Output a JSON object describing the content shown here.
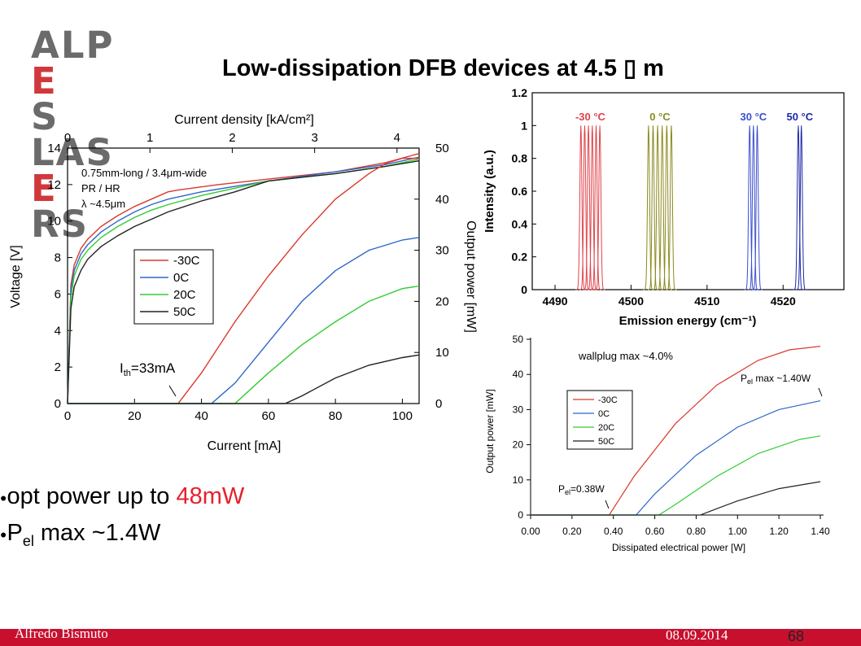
{
  "logo": {
    "line1a": "ALP",
    "line1b": "E",
    "line1c": "S",
    "line2a": "LAS",
    "line2b": "E",
    "line2c": "RS"
  },
  "title": "Low-dissipation DFB devices at 4.5 ▯ m",
  "bullets": [
    {
      "dot": "●",
      "text": "opt power up to ",
      "highlight": "48mW"
    },
    {
      "dot": "●",
      "text": "P",
      "sub": "el",
      "tail": " max ~1.4W"
    }
  ],
  "footer": {
    "author": "Alfredo Bismuto",
    "date": "08.09.2014",
    "page": "68"
  },
  "colors": {
    "-30C": "#d9392c",
    "0C": "#2f66c9",
    "20C": "#33cc33",
    "50C": "#222222",
    "brand_red": "#c8102e"
  },
  "chart_data": [
    {
      "type": "line",
      "top_axis_label": "Current density [kA/cm²]",
      "top_ticks": [
        "0",
        "1",
        "2",
        "3",
        "4"
      ],
      "xlabel": "Current [mA]",
      "ylabel": "Voltage [V]",
      "y2label": "Output power [mW]",
      "xlim": [
        0,
        105
      ],
      "ylim": [
        0,
        14
      ],
      "y2lim": [
        0,
        50
      ],
      "xticks": [
        "0",
        "20",
        "40",
        "60",
        "80",
        "100"
      ],
      "yticks": [
        "0",
        "2",
        "4",
        "6",
        "8",
        "10",
        "12",
        "14"
      ],
      "y2ticks": [
        "0",
        "10",
        "20",
        "30",
        "40",
        "50"
      ],
      "annotation_lines": [
        "0.75mm-long / 3.4μm-wide",
        "PR / HR",
        "λ ~4.5μm"
      ],
      "threshold_label": "I",
      "threshold_sub": "th",
      "threshold_value": "=33mA",
      "legend_placement": "center-left",
      "legend": [
        "-30C",
        "0C",
        "20C",
        "50C"
      ],
      "voltage_series": [
        {
          "name": "-30C",
          "x": [
            0,
            1,
            2,
            4,
            6,
            10,
            15,
            20,
            25,
            30,
            33,
            45,
            60,
            80,
            95,
            105
          ],
          "y": [
            0,
            6.5,
            7.6,
            8.5,
            9.0,
            9.7,
            10.3,
            10.8,
            11.2,
            11.6,
            11.7,
            12.0,
            12.3,
            12.7,
            13.2,
            13.7
          ]
        },
        {
          "name": "0C",
          "x": [
            0,
            1,
            2,
            4,
            6,
            10,
            15,
            20,
            25,
            30,
            40,
            50,
            60,
            80,
            95,
            105
          ],
          "y": [
            0,
            6.2,
            7.3,
            8.2,
            8.7,
            9.4,
            10.0,
            10.5,
            10.9,
            11.2,
            11.6,
            11.9,
            12.2,
            12.7,
            13.1,
            13.5
          ]
        },
        {
          "name": "20C",
          "x": [
            0,
            1,
            2,
            4,
            6,
            10,
            15,
            20,
            25,
            30,
            40,
            50,
            60,
            80,
            95,
            105
          ],
          "y": [
            0,
            5.8,
            7.0,
            7.9,
            8.4,
            9.1,
            9.7,
            10.2,
            10.6,
            10.9,
            11.4,
            11.8,
            12.2,
            12.6,
            13.0,
            13.4
          ]
        },
        {
          "name": "50C",
          "x": [
            0,
            1,
            2,
            4,
            6,
            10,
            15,
            20,
            25,
            30,
            40,
            50,
            60,
            80,
            95,
            105
          ],
          "y": [
            0,
            5.2,
            6.4,
            7.3,
            7.9,
            8.6,
            9.2,
            9.7,
            10.1,
            10.5,
            11.1,
            11.6,
            12.2,
            12.6,
            13.0,
            13.3
          ]
        }
      ],
      "power_series": [
        {
          "name": "-30C",
          "x": [
            0,
            31,
            33,
            40,
            50,
            60,
            70,
            80,
            90,
            95,
            100,
            105
          ],
          "y": [
            0,
            0,
            0,
            6,
            16,
            25,
            33,
            40,
            45,
            47,
            48,
            48
          ]
        },
        {
          "name": "0C",
          "x": [
            0,
            40,
            43,
            50,
            60,
            70,
            80,
            90,
            100,
            105
          ],
          "y": [
            0,
            0,
            0,
            4,
            12,
            20,
            26,
            30,
            32,
            32.5
          ]
        },
        {
          "name": "20C",
          "x": [
            0,
            49,
            50,
            60,
            70,
            80,
            90,
            100,
            105
          ],
          "y": [
            0,
            0,
            0,
            6,
            11.5,
            16,
            20,
            22.5,
            23
          ]
        },
        {
          "name": "50C",
          "x": [
            0,
            63,
            65,
            70,
            80,
            90,
            100,
            105
          ],
          "y": [
            0,
            0,
            0,
            1.5,
            5,
            7.5,
            9,
            9.5
          ]
        }
      ]
    },
    {
      "type": "line",
      "xlabel": "Emission energy (cm⁻¹)",
      "ylabel": "Intensity (a.u.)",
      "xlim": [
        4487,
        4528
      ],
      "ylim": [
        0,
        1.2
      ],
      "xticks": [
        "4490",
        "4500",
        "4510",
        "4520"
      ],
      "yticks": [
        "0",
        "0.2",
        "0.4",
        "0.6",
        "0.8",
        "1",
        "1.2"
      ],
      "groups": [
        {
          "name": "-30 °C",
          "color": "#e0434b",
          "peaks": [
            4493.4,
            4493.9,
            4494.4,
            4494.9,
            4495.4,
            4495.9
          ]
        },
        {
          "name": "0 °C",
          "color": "#8c8a1e",
          "peaks": [
            4502.3,
            4502.9,
            4503.5,
            4504.1,
            4504.7,
            4505.3
          ]
        },
        {
          "name": "30 °C",
          "color": "#3a4fd0",
          "peaks": [
            4515.6,
            4516.1,
            4516.6
          ]
        },
        {
          "name": "50 °C",
          "color": "#1c2aa8",
          "peaks": [
            4522.0,
            4522.4
          ]
        }
      ]
    },
    {
      "type": "line",
      "xlabel": "Dissipated electrical power [W]",
      "ylabel": "Output power [mW]",
      "xlim": [
        0,
        1.4
      ],
      "ylim": [
        0,
        50
      ],
      "xticks": [
        "0.00",
        "0.20",
        "0.40",
        "0.60",
        "0.80",
        "1.00",
        "1.20",
        "1.40"
      ],
      "yticks": [
        "0",
        "10",
        "20",
        "30",
        "40",
        "50"
      ],
      "annotation": "wallplug max ~4.0%",
      "pmax_label": "P",
      "pmax_sub": "el",
      "pmax_value": " max ~1.40W",
      "pth_label": "P",
      "pth_sub": "el",
      "pth_value": "=0.38W",
      "legend_placement": "center-left",
      "legend": [
        "-30C",
        "0C",
        "20C",
        "50C"
      ],
      "series": [
        {
          "name": "-30C",
          "x": [
            0,
            0.37,
            0.38,
            0.5,
            0.7,
            0.9,
            1.1,
            1.25,
            1.4
          ],
          "y": [
            0,
            0,
            0,
            11,
            26,
            37,
            44,
            47,
            48
          ]
        },
        {
          "name": "0C",
          "x": [
            0,
            0.5,
            0.51,
            0.6,
            0.8,
            1.0,
            1.2,
            1.4
          ],
          "y": [
            0,
            0,
            0,
            6,
            17,
            25,
            30,
            32.5
          ]
        },
        {
          "name": "20C",
          "x": [
            0,
            0.6,
            0.62,
            0.7,
            0.9,
            1.1,
            1.3,
            1.4
          ],
          "y": [
            0,
            0,
            0,
            3,
            11,
            17.5,
            21.5,
            22.5
          ]
        },
        {
          "name": "50C",
          "x": [
            0,
            0.8,
            0.82,
            0.9,
            1.0,
            1.2,
            1.4
          ],
          "y": [
            0,
            0,
            0,
            1.8,
            4,
            7.5,
            9.5
          ]
        }
      ]
    }
  ]
}
